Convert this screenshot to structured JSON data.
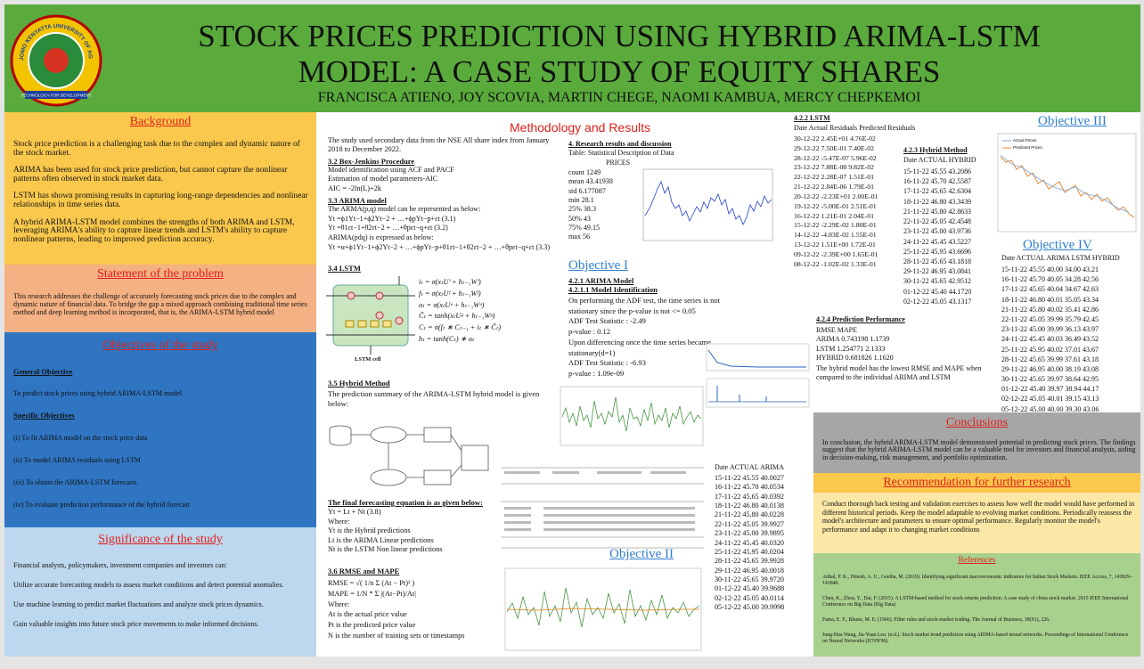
{
  "logo": {
    "ring_text": "JOMO KENYATTA UNIVERSITY OF AGRICULTURE AND TECHNOLOGY",
    "motto": "TECHNOLOGY FOR DEVELOPMENT"
  },
  "header": {
    "title_line1": "STOCK PRICES PREDICTION USING HYBRID ARIMA-LSTM",
    "title_line2": "MODEL: A CASE STUDY OF EQUITY SHARES",
    "authors": "FRANCISCA ATIENO,  JOY SCOVIA, MARTIN CHEGE, NAOMI KAMBUA, MERCY CHEPKEMOI"
  },
  "background": {
    "heading": "Background",
    "paragraphs": [
      "Stock price prediction is a challenging task due to the complex and dynamic nature of the stock market.",
      "ARIMA has been used for stock price prediction, but cannot capture the nonlinear patterns often observed in stock market data.",
      "LSTM has shown promising results in capturing long-range dependencies and nonlinear relationships in time series data.",
      "A hybrid ARIMA-LSTM model combines the strengths of both ARIMA and LSTM, leveraging ARIMA's ability to capture linear trends and LSTM's ability to capture nonlinear patterns, leading to improved prediction accuracy."
    ]
  },
  "statement": {
    "heading": "Statement of the problem",
    "text": "This research addresses the challenge of accurately forecasting stock prices due to the complex and dynamic nature of financial data. To bridge the gap a mixed approach combining traditional time series method and deep learning method is incorporated, that is, the ARIMA-LSTM hybrid model"
  },
  "objectives": {
    "heading": "Objectives of the study",
    "general_heading": "General Objective",
    "general_text": "To predict stock prices using hybrid ARIMA-LSTM model.",
    "specific_heading": "Specific Objectives",
    "items": [
      "(i) To fit ARIMA model on the stock price data",
      "(ii) To model ARIMA residuals using LSTM",
      "(iii) To obtain the ARIMA-LSTM forecasts",
      "(iv) To evaluate prediction performance of the hybrid forecast"
    ]
  },
  "significance": {
    "heading": "Significance of the study",
    "paragraphs": [
      "Financial analysts, policymakers, investment companies and investors can:",
      "Utilize accurate forecasting models to assess market conditions and detect potential anomalies.",
      "Use machine learning to predict market fluctuations and analyze stock prices dynamics.",
      "Gain valuable insights into future stock price movements to make informed decisions."
    ]
  },
  "methodology": {
    "heading": "Methodology and Results",
    "intro": "The study used secondary data from the NSE All share index from January 2018 to December 2022.",
    "box_jenkins": {
      "heading": "3.2 Box-Jenkins Procedure",
      "lines": [
        "Model identification using ACF and PACF",
        "Estimation of model parameters-AIC",
        "AIC = -2ln(L)+2k"
      ]
    },
    "arima": {
      "heading": "3.3 ARIMA model",
      "lines": [
        "The ARMA(p,q) model can be represented as below:",
        "Yt =ϕ1Yt−1+ϕ2Yt−2 + …+ϕpYt−p+εt (3.1)",
        "Yt =θ1εt−1+θ2εt−2 + …+θpεt−q+εt (3.2)",
        "ARIMA(pdq) is expressed as below:",
        "Yt =α+ϕ1Yt−1+ϕ2Yt−2 + …+ϕpYt−p+θ1εt−1+θ2εt−2 + …+θpεt−q+εt (3.3)"
      ]
    },
    "lstm": {
      "heading": "3.4 LSTM",
      "cell_label": "LSTM cell",
      "equations": [
        "iₜ = σ(xₜUⁱ + hₜ₋₁Wⁱ)",
        "fₜ = σ(xₜUᶠ + hₜ₋₁Wᶠ)",
        "oₜ = σ(xₜUᵒ + hₜ₋₁Wᵒ)",
        "C̃ₜ = tanh(xₜUᵍ + hₜ₋₁Wᵍ)",
        "Cₜ = σ(fₜ ∗ Cₜ₋₁ + iₜ ∗ C̃ₜ)",
        "hₜ = tanh(Cₜ) ∗ oₜ"
      ]
    },
    "hybrid": {
      "heading": "3.5 Hybrid Method",
      "text": "The prediction summary of the ARIMA-LSTM hybrid model is given below:"
    },
    "final": {
      "heading": "The final forecasting equation is as given below:",
      "lines": [
        "Yt = Lt + Nt (3.8)",
        "Where:",
        "Yt is the Hybrid predictions",
        "Lt is the ARIMA Linear predictions",
        "Nt is the LSTM Non linear predictions"
      ]
    },
    "rmse": {
      "heading": "3.6 RMSE and MAPE",
      "lines": [
        "RMSE = √( 1/n Σ (At − Pt)² )",
        "MAPE = 1/N * Σ |(At−Pt)/At|",
        "Where:",
        "At is the actual price value",
        "Pt is the predicted price value",
        "N is the number of training sets or timestamps"
      ]
    }
  },
  "research": {
    "heading": "4. Research results and discussion",
    "caption": "Table: Statistical Description of Data",
    "column": "PRICES",
    "stats": [
      "count 1249",
      "mean 43.41938",
      "std 6.177087",
      "min 28.1",
      "25% 38.3",
      "50% 43",
      "75% 49.15",
      "max 56"
    ]
  },
  "objective1": {
    "heading": "Objective I",
    "sub1": "4.2.1 ARIMA Model",
    "sub2": "4.2.1.1 Model Identification",
    "lines": [
      "On performing the ADF test, the time series is not stationary since the p-value is not <= 0.05",
      "ADF Test Statistic : -2.49",
      "p-value : 0.12",
      "Upon differencing once the time series became stationary(d=1)",
      "ADF Test Statistic : -6.93",
      "p-value : 1.09e-09"
    ]
  },
  "objective2": {
    "heading": "Objective II",
    "header": "Date    ACTUAL ARIMA",
    "rows": [
      "15-11-22 45.55 40.0027",
      "16-11-22 45.70 40.0534",
      "17-11-22 45.65 40.0392",
      "18-11-22 46.80 40.0138",
      "21-11-22 45.80 40.0228",
      "22-11-22 45.05 39.9927",
      "23-11-22 45.00 39.9895",
      "24-11-22 45.45 40.0320",
      "25-11-22 45.95 40.0204",
      "28-11-22 45.65 39.9928",
      "29-11-22 46.95 40.0018",
      "30-11-22 45.65 39.9720",
      "01-12-22 45.40 39.9688",
      "02-12-22 45.05 40.0114",
      "05-12-22 45.00 39.9998"
    ]
  },
  "lstm_table": {
    "heading": "4.2.2 LSTM",
    "header": "Date  Actual Residuals Predicted Residuals",
    "rows": [
      "30-12-22 2.45E+01 4.76E-02",
      "29-12-22 7.50E-01 7.40E-02",
      "28-12-22 -5.47E-07 5.96E-02",
      "23-12-22 7.88E-08 9.82E-02",
      "22-12-22 2.28E-07 1.51E-01",
      "21-12-22 2.84E-06 1.79E-01",
      "20-12-22 -2.23E+01 2.00E-01",
      "19-12-22 -5.00E-01 2.51E-01",
      "16-12-22 1.21E-01 2.04E-01",
      "15-12-22 -2.29E-02 1.80E-01",
      "14-12-22 -4.83E-02 1.55E-01",
      "13-12-22 1.51E+00 1.72E-01",
      "09-12-22 -2.39E+00 1.65E-01",
      "08-12-22 -1.02E-02 1.33E-01"
    ]
  },
  "hybrid_table": {
    "heading": "4.2.3 Hybrid Method",
    "header": "Date    ACTUAL HYBRID",
    "rows": [
      "15-11-22 45.55 43.2086",
      "16-11-22 45.70 42.5587",
      "17-11-22 45.65 42.6304",
      "18-11-22 46.80 43.3439",
      "21-11-22 45.80 42.8633",
      "22-11-22 45.05 42.4548",
      "23-11-22 45.00 43.9736",
      "24-11-22 45.45 43.5227",
      "25-11-22 45.95 43.6696",
      "28-11-22 45.65 43.1818",
      "29-11-22 46.95 43.0841",
      "30-11-22 45.65 42.9512",
      "01-12-22 45.40 44.1720",
      "02-12-22 45.05 43.1317"
    ]
  },
  "prediction": {
    "heading": "4.2.4 Prediction Performance",
    "lines": [
      "RMSE MAPE",
      "ARIMA 0.743198 1.1739",
      "LSTM 1.254771 2.1333",
      "HYBRID 0.681826 1.1620"
    ],
    "text": "The hybrid model has the lowest RMSE and MAPE when compared to the individual ARIMA and LSTM"
  },
  "objective3": {
    "heading": "Objective III",
    "legend": [
      "Actual Prices",
      "Predicted Prices"
    ]
  },
  "objective4": {
    "heading": "Objective IV",
    "header": "Date ACTUAL ARIMA LSTM HYBRID",
    "rows": [
      "15-11-22 45.55 40.00 34.00 43.21",
      "16-11-22 45.70 40.05 34.28 42.56",
      "17-11-22 45.65 40.04 34.67 42.63",
      "18-11-22 46.80 40.01 35.05 43.34",
      "21-11-22 45.80 40.02 35.41 42.86",
      "22-11-22 45.05 39.99 35.79 42.45",
      "23-11-22 45.00 39.99 36.13 43.97",
      "24-11-22 45.45 40.03 36.49 43.52",
      "25-11-22 45.95 40.02 37.01 43.67",
      "28-11-22 45.65 39.99 37.61 43.18",
      "29-11-22 46.95 40.00 38.19 43.08",
      "30-11-22 45.65 39.97 38.64 42.95",
      "01-12-22 45.40 39.97 38.94 44.17",
      "02-12-22 45.05 40.01 39.15 43.13",
      "05-12-22 45.00 40.00 39.30 43.06"
    ]
  },
  "conclusions": {
    "heading": "Conclusions",
    "text": "In conclusion, the hybrid ARIMA-LSTM model demonstrated potential in predicting stock prices. The findings suggest that the hybrid ARIMA-LSTM model can be a valuable tool for investors and financial analysts, aiding in decision-making, risk management, and portfolio optimization."
  },
  "recommendation": {
    "heading": "Recommendation for further research",
    "text": "Conduct thorough back testing and validation exercises to assess how well the model would have performed in different historical periods. Keep the model adaptable to evolving market conditions. Periodically reassess the model's architecture and parameters to ensure optimal performance. Regularly monitor the model's performance and adapt it to changing market conditions"
  },
  "references": {
    "heading": "References",
    "items": [
      "Aithal, P. K., Dinesh, A. U., Geetha, M. (2019). Identifying significant macroeconomic indicators for Indian Stock Markets. IEEE Access, 7, 143829–143840.",
      "Chen, K., Zhou, Y., Dai, F. (2015). A LSTM-based method for stock returns prediction: A case study of china stock market. 2015 IEEE International Conference on Big Data (Big Data).",
      "Fama, E. F., Blume, M. E. (1966). Filter rules and stock-market trading. The Journal of Business, 39(S1), 226.",
      "Jung-Hua Wang, Jia-Yuan Leu. (n.d.). Stock market trend prediction using ARIMA-based neural networks. Proceedings of International Conference on Neural Networks (ICNN'96)."
    ]
  }
}
